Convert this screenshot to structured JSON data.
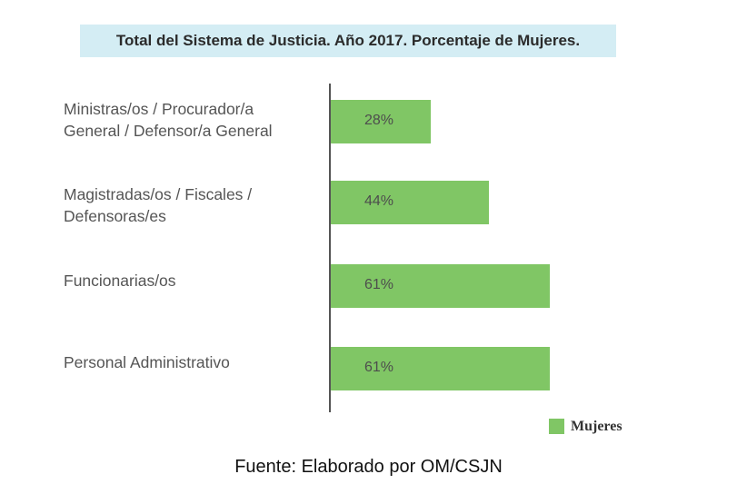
{
  "chart_data": {
    "type": "bar",
    "orientation": "horizontal",
    "title": "Total del Sistema de Justicia. Año 2017. Porcentaje de Mujeres.",
    "categories": [
      "Ministras/os / Procurador/a\nGeneral / Defensor/a General",
      "Magistradas/os / Fiscales /\nDefensoras/es",
      "Funcionarias/os",
      "Personal Administrativo"
    ],
    "series": [
      {
        "name": "Mujeres",
        "values": [
          28,
          44,
          61,
          61
        ],
        "labels": [
          "28%",
          "44%",
          "61%",
          "61%"
        ]
      }
    ],
    "xlim": [
      0,
      100
    ],
    "grid": false,
    "legend_position": "bottom-right",
    "colors": {
      "bar": "#80c665",
      "title_bg": "#d4edf4"
    }
  },
  "source": "Fuente: Elaborado por OM/CSJN"
}
